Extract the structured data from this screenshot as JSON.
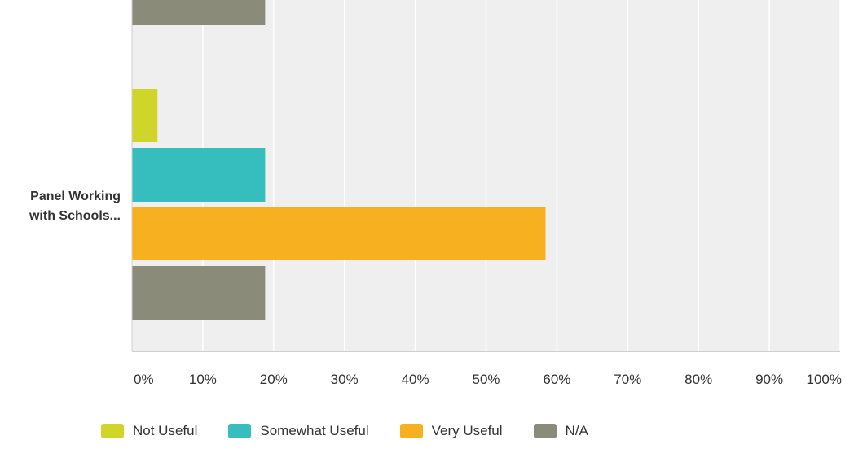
{
  "chart_data": {
    "type": "bar",
    "orientation": "horizontal",
    "categories": [
      "",
      "Panel Working with Schools..."
    ],
    "category_label_lines": [
      [],
      [
        "Panel Working",
        "with Schools..."
      ]
    ],
    "series": [
      {
        "name": "Not Useful",
        "color": "#d0d629",
        "values": [
          null,
          3.6
        ]
      },
      {
        "name": "Somewhat Useful",
        "color": "#36bebe",
        "values": [
          null,
          18.8
        ]
      },
      {
        "name": "Very Useful",
        "color": "#f7b020",
        "values": [
          null,
          58.4
        ]
      },
      {
        "name": "N/A",
        "color": "#8b8b79",
        "values": [
          18.8,
          18.8
        ]
      }
    ],
    "x_ticks": [
      "0%",
      "10%",
      "20%",
      "30%",
      "40%",
      "50%",
      "60%",
      "70%",
      "80%",
      "90%",
      "100%"
    ],
    "xlim": [
      0,
      100
    ],
    "grid": true,
    "legend_position": "bottom",
    "plot_background": "#efefef",
    "grid_color": "#ffffff",
    "axis_color": "#cfcfcf"
  }
}
